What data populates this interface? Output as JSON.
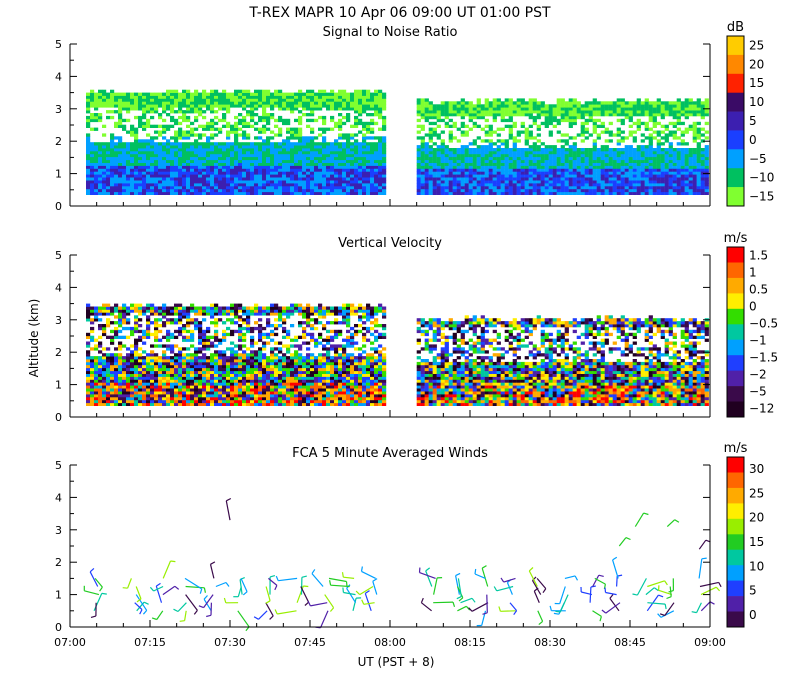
{
  "title": "T-REX  MAPR 10 Apr 06  09:00 UT  01:00  PST",
  "xlabel": "UT  (PST + 8)",
  "ylabel": "Altitude (km)",
  "x_ticks": [
    "07:00",
    "07:15",
    "07:30",
    "07:45",
    "08:00",
    "08:15",
    "08:30",
    "08:45",
    "09:00"
  ],
  "y_ticks": [
    "0",
    "1",
    "2",
    "3",
    "4",
    "5"
  ],
  "colors": {
    "axis": "#000000",
    "background": "#ffffff"
  },
  "chart_data": [
    {
      "type": "heatmap",
      "title": "Signal to Noise Ratio",
      "unit": "dB",
      "xlim": [
        "07:00",
        "09:00"
      ],
      "ylim": [
        0,
        5
      ],
      "data_gap": [
        "07:59",
        "08:05"
      ],
      "echo_top_km": [
        3.5,
        3.2
      ],
      "colorbar": {
        "labels": [
          "25",
          "20",
          "15",
          "10",
          "5",
          "0",
          "−5",
          "−10",
          "−15"
        ],
        "colors": [
          "#ffcc00",
          "#ff8800",
          "#ff2200",
          "#3a0b66",
          "#3c1fb0",
          "#1a3fff",
          "#00a0ff",
          "#00c060",
          "#80ff30"
        ]
      }
    },
    {
      "type": "heatmap",
      "title": "Vertical Velocity",
      "unit": "m/s",
      "xlim": [
        "07:00",
        "09:00"
      ],
      "ylim": [
        0,
        5
      ],
      "data_gap": [
        "07:59",
        "08:05"
      ],
      "echo_top_km": [
        3.4,
        3.0
      ],
      "colorbar": {
        "labels": [
          "1.5",
          "1",
          "0.5",
          "0",
          "−0.5",
          "−1",
          "−1.5",
          "−2",
          "−5",
          "−12"
        ],
        "colors": [
          "#ff0000",
          "#ff6600",
          "#ffaa00",
          "#ffee00",
          "#33dd00",
          "#00c8a0",
          "#00a0ff",
          "#1f3fff",
          "#5020a8",
          "#3a0a4a",
          "#200020"
        ]
      }
    },
    {
      "type": "wind_barbs",
      "title": "FCA 5 Minute Averaged Winds",
      "unit": "m/s",
      "xlim": [
        "07:00",
        "09:00"
      ],
      "ylim": [
        0,
        5
      ],
      "profile_times": [
        "07:05",
        "07:12",
        "07:17",
        "07:22",
        "07:27",
        "07:32",
        "07:37",
        "07:43",
        "07:48",
        "07:53",
        "07:57",
        "08:08",
        "08:13",
        "08:18",
        "08:23",
        "08:28",
        "08:33",
        "08:38",
        "08:43",
        "08:48",
        "08:53",
        "08:58"
      ],
      "altitude_range_km": [
        0.5,
        1.7
      ],
      "upper_level_barbs": [
        {
          "time": "07:30",
          "alt_km": 3.3
        },
        {
          "time": "08:43",
          "alt_km": 2.5
        },
        {
          "time": "08:46",
          "alt_km": 3.1
        },
        {
          "time": "08:52",
          "alt_km": 3.1
        },
        {
          "time": "08:58",
          "alt_km": 2.4
        }
      ],
      "colorbar": {
        "labels": [
          "30",
          "25",
          "20",
          "15",
          "10",
          "5",
          "0"
        ],
        "colors": [
          "#ff0000",
          "#ff6600",
          "#ffaa00",
          "#ffee00",
          "#99ee00",
          "#22cc22",
          "#00c8a0",
          "#00a0ff",
          "#1f3fff",
          "#5020a8",
          "#3a0a4a"
        ]
      }
    }
  ]
}
